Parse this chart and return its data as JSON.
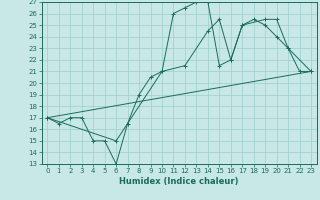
{
  "title": "",
  "xlabel": "Humidex (Indice chaleur)",
  "bg_color": "#c8e8e8",
  "line_color": "#1a6b5a",
  "grid_color": "#9ecece",
  "ylim": [
    13,
    27
  ],
  "xlim": [
    -0.5,
    23.5
  ],
  "yticks": [
    13,
    14,
    15,
    16,
    17,
    18,
    19,
    20,
    21,
    22,
    23,
    24,
    25,
    26,
    27
  ],
  "xticks": [
    0,
    1,
    2,
    3,
    4,
    5,
    6,
    7,
    8,
    9,
    10,
    11,
    12,
    13,
    14,
    15,
    16,
    17,
    18,
    19,
    20,
    21,
    22,
    23
  ],
  "line1_x": [
    0,
    1,
    2,
    3,
    4,
    5,
    6,
    7,
    8,
    9,
    10,
    11,
    12,
    13,
    14,
    15,
    16,
    17,
    18,
    19,
    20,
    21,
    22,
    23
  ],
  "line1_y": [
    17.0,
    16.5,
    17.0,
    17.0,
    15.0,
    15.0,
    13.0,
    16.5,
    19.0,
    20.5,
    21.0,
    26.0,
    26.5,
    27.0,
    27.0,
    21.5,
    22.0,
    25.0,
    25.5,
    25.0,
    24.0,
    23.0,
    21.0,
    21.0
  ],
  "line2_x": [
    0,
    23
  ],
  "line2_y": [
    17.0,
    21.0
  ],
  "line3_x": [
    0,
    6,
    10,
    12,
    14,
    15,
    16,
    17,
    19,
    20,
    21,
    23
  ],
  "line3_y": [
    17.0,
    15.0,
    21.0,
    21.5,
    24.5,
    25.5,
    22.0,
    25.0,
    25.5,
    25.5,
    23.0,
    21.0
  ],
  "tick_fontsize": 5.0,
  "xlabel_fontsize": 6.0
}
